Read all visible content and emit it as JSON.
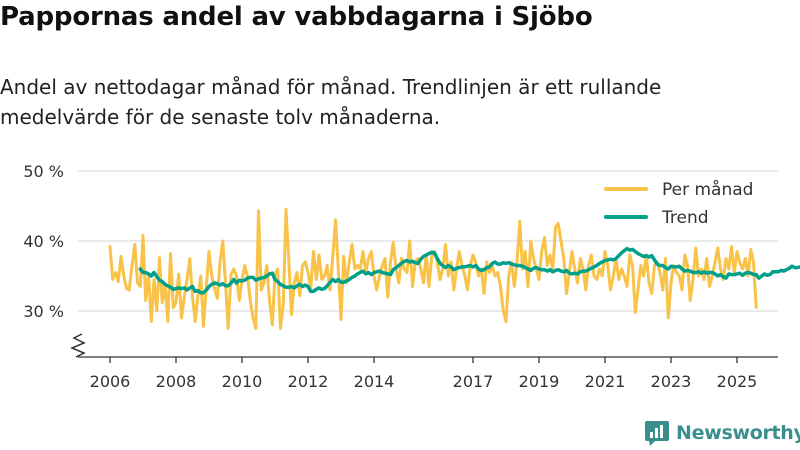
{
  "header": {
    "title": "Pappornas andel av vabbdagarna i Sjöbo",
    "subtitle": "Andel av nettodagar månad för månad. Trendlinjen är ett rullande medelvärde för de senaste tolv månaderna."
  },
  "logo": {
    "text": "Newsworthy"
  },
  "colors": {
    "monthly": "#f9c349",
    "trend": "#00a08a",
    "grid": "#dddddd",
    "axis": "#333333"
  },
  "chart_data": {
    "type": "line",
    "title": "Pappornas andel av vabbdagarna i Sjöbo",
    "ylim": [
      24,
      50
    ],
    "y_ticks": [
      30,
      40,
      50
    ],
    "y_tick_labels": [
      "30 %",
      "40 %",
      "50 %"
    ],
    "x_ticks": [
      2006,
      2008,
      2010,
      2012,
      2014,
      2017,
      2019,
      2021,
      2023,
      2025
    ],
    "x_tick_labels": [
      "2006",
      "2008",
      "2010",
      "2012",
      "2014",
      "2017",
      "2019",
      "2021",
      "2023",
      "2025"
    ],
    "axis_break": true,
    "legend": {
      "position": "top-right"
    },
    "series": [
      {
        "name": "Per månad",
        "color": "#f9c349",
        "start": [
          2006,
          1
        ],
        "values": [
          39.2,
          34.5,
          35.5,
          34.2,
          37.8,
          35.0,
          33.2,
          33.0,
          36.5,
          39.5,
          34.0,
          33.5,
          40.8,
          31.5,
          35.2,
          28.5,
          34.5,
          30.0,
          37.6,
          31.2,
          33.8,
          28.5,
          38.2,
          30.5,
          31.2,
          35.3,
          29.0,
          32.0,
          34.5,
          37.5,
          32.0,
          28.5,
          32.2,
          35.0,
          27.8,
          33.5,
          38.5,
          35.0,
          33.2,
          31.8,
          37.0,
          40.0,
          34.0,
          27.5,
          35.2,
          36.0,
          35.0,
          31.5,
          34.5,
          36.5,
          35.0,
          31.5,
          29.0,
          27.5,
          44.3,
          33.0,
          34.0,
          36.5,
          31.5,
          28.0,
          35.2,
          36.0,
          27.5,
          31.0,
          44.5,
          37.2,
          29.5,
          34.0,
          35.5,
          32.2,
          36.5,
          37.0,
          35.5,
          33.2,
          38.5,
          34.5,
          38.0,
          34.5,
          35.0,
          36.5,
          33.0,
          37.8,
          43.0,
          36.0,
          28.8,
          37.8,
          34.0,
          37.0,
          39.5,
          36.0,
          36.5,
          36.0,
          38.5,
          35.5,
          37.5,
          38.5,
          35.0,
          33.0,
          35.0,
          36.5,
          37.5,
          32.0,
          37.0,
          39.8,
          36.0,
          34.0,
          37.5,
          36.0,
          35.5,
          40.0,
          33.5,
          37.0,
          37.5,
          36.0,
          34.0,
          38.0,
          33.5,
          37.8,
          38.5,
          37.0,
          34.5,
          36.0,
          39.5,
          35.0,
          37.0,
          33.0,
          36.0,
          38.5,
          36.5,
          35.0,
          33.0,
          36.5,
          38.0,
          37.0,
          35.0,
          36.0,
          32.5,
          37.0,
          35.5,
          36.5,
          35.0,
          35.5,
          33.5,
          30.0,
          28.5,
          35.0,
          37.0,
          33.5,
          37.0,
          42.8,
          36.0,
          38.5,
          33.5,
          40.0,
          37.5,
          36.0,
          34.5,
          38.5,
          40.5,
          36.5,
          38.0,
          36.0,
          42.0,
          42.5,
          40.0,
          37.5,
          32.5,
          35.5,
          38.5,
          36.0,
          34.0,
          37.5,
          36.0,
          33.0,
          36.5,
          38.0,
          35.0,
          34.5,
          36.0,
          35.0,
          38.5,
          36.5,
          33.0,
          35.0,
          37.5,
          34.5,
          36.0,
          35.0,
          33.5,
          38.0,
          36.5,
          29.8,
          33.0,
          36.5,
          35.0,
          38.0,
          34.0,
          32.5,
          36.5,
          37.0,
          35.5,
          33.0,
          37.5,
          29.0,
          34.0,
          36.5,
          35.5,
          35.0,
          33.0,
          38.0,
          36.5,
          31.5,
          34.5,
          39.0,
          35.0,
          36.0,
          34.5,
          37.5,
          33.5,
          35.0,
          37.0,
          39.0,
          36.0,
          34.5,
          37.5,
          36.0,
          39.2,
          35.5,
          38.5,
          37.0,
          36.0,
          37.5,
          35.0,
          38.8,
          37.0,
          30.5
        ]
      },
      {
        "name": "Trend",
        "color": "#00a08a",
        "start": [
          2006,
          12
        ],
        "values": [
          36.0,
          35.5,
          35.5,
          35.3,
          35.0,
          35.5,
          34.9,
          34.4,
          34.2,
          33.8,
          33.6,
          33.4,
          33.1,
          33.2,
          33.3,
          33.2,
          33.3,
          33.0,
          33.3,
          33.5,
          32.8,
          32.9,
          32.6,
          32.6,
          33.0,
          33.5,
          33.8,
          34.0,
          33.9,
          33.7,
          33.9,
          33.6,
          33.6,
          34.0,
          34.5,
          34.0,
          34.4,
          34.3,
          34.4,
          34.7,
          34.8,
          34.8,
          34.4,
          34.6,
          34.7,
          34.8,
          35.0,
          35.3,
          35.4,
          34.5,
          34.2,
          33.8,
          33.6,
          33.4,
          33.4,
          33.5,
          33.3,
          33.6,
          33.8,
          33.5,
          33.7,
          33.5,
          32.8,
          32.8,
          33.1,
          33.3,
          33.1,
          33.2,
          33.6,
          34.1,
          34.5,
          34.2,
          34.5,
          34.1,
          34.1,
          34.3,
          34.5,
          34.8,
          35.0,
          35.3,
          35.5,
          35.7,
          35.3,
          35.5,
          35.2,
          35.5,
          35.6,
          35.7,
          35.5,
          35.4,
          35.3,
          35.2,
          35.9,
          36.2,
          36.5,
          36.8,
          37.1,
          37.2,
          37.0,
          37.1,
          36.9,
          36.8,
          37.4,
          37.8,
          38.0,
          38.2,
          38.4,
          38.3,
          37.5,
          36.8,
          36.5,
          36.2,
          36.5,
          36.3,
          35.9,
          36.1,
          36.2,
          36.3,
          36.3,
          36.4,
          36.5,
          36.3,
          36.5,
          36.0,
          35.8,
          35.9,
          36.2,
          36.3,
          36.8,
          37.0,
          36.7,
          36.7,
          36.9,
          36.8,
          36.9,
          36.7,
          36.6,
          36.5,
          36.5,
          36.4,
          36.2,
          36.0,
          35.8,
          36.1,
          36.2,
          36.0,
          35.9,
          35.9,
          35.7,
          35.9,
          35.6,
          35.8,
          35.9,
          35.7,
          35.6,
          35.8,
          35.4,
          35.3,
          35.4,
          35.3,
          35.6,
          35.7,
          35.7,
          35.9,
          36.1,
          36.3,
          36.5,
          36.8,
          37.0,
          37.2,
          37.3,
          37.4,
          37.3,
          37.5,
          37.9,
          38.3,
          38.6,
          38.9,
          38.7,
          38.8,
          38.5,
          38.2,
          38.0,
          37.8,
          37.9,
          37.7,
          37.9,
          37.3,
          36.7,
          36.5,
          36.5,
          36.2,
          36.0,
          36.4,
          36.3,
          36.3,
          36.4,
          36.0,
          35.7,
          35.8,
          35.7,
          35.5,
          35.5,
          35.6,
          35.4,
          35.6,
          35.4,
          35.5,
          35.5,
          35.3,
          35.0,
          35.2,
          34.9,
          34.7,
          35.3,
          35.2,
          35.2,
          35.3,
          35.4,
          35.1,
          35.4,
          35.5,
          35.4,
          35.2,
          35.2,
          34.7,
          35.0,
          35.3,
          35.1,
          35.2,
          35.6,
          35.6,
          35.6,
          35.8,
          35.7,
          35.9,
          36.1,
          36.4,
          36.2,
          36.2,
          36.3,
          36.4,
          36.5,
          36.2,
          36.0
        ]
      }
    ]
  }
}
